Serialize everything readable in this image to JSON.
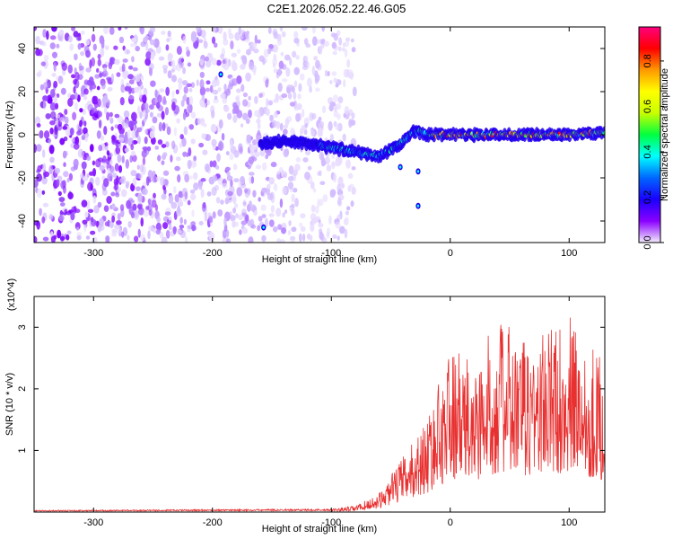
{
  "figure": {
    "title": "C2E1.2026.052.22.46.G05"
  },
  "chart_data": [
    {
      "type": "heatmap",
      "title": "",
      "xlabel": "Height of straight line (km)",
      "ylabel": "Frequency (Hz)",
      "xlim": [
        -350,
        130
      ],
      "ylim": [
        -50,
        50
      ],
      "x_ticks": [
        -300,
        -200,
        -100,
        0,
        100
      ],
      "x_tick_labels": [
        "-300",
        "-200",
        "-100",
        "0",
        "100"
      ],
      "y_ticks": [
        -40,
        -20,
        0,
        20,
        40
      ],
      "y_tick_labels": [
        "-40",
        "-20",
        "0",
        "20",
        "40"
      ],
      "colorbar": {
        "label": "Normalized spectral amplitude",
        "range": [
          0,
          0.95
        ],
        "ticks": [
          0.0,
          0.2,
          0.4,
          0.6,
          0.8
        ],
        "tick_labels": [
          "0.0",
          "0.2",
          "0.4",
          "0.6",
          "0.8"
        ],
        "colors": [
          "#f4ecff",
          "#8a00ff",
          "#1a00ff",
          "#0066ff",
          "#00ffff",
          "#00ff40",
          "#c8ff00",
          "#ffff00",
          "#ff9900",
          "#ff0000",
          "#ff0080"
        ]
      },
      "noise_region_x": [
        -350,
        -110
      ],
      "signal_trace": {
        "x": [
          -160,
          -140,
          -120,
          -100,
          -80,
          -60,
          -50,
          -40,
          -30,
          -20,
          0,
          50,
          100,
          130
        ],
        "y": [
          -4,
          -3,
          -4,
          -6,
          -8,
          -10,
          -7,
          -3,
          2,
          0,
          0,
          0,
          0,
          1
        ]
      },
      "grid": false,
      "legend": "none"
    },
    {
      "type": "line",
      "title": "",
      "xlabel": "Height of straight line (km)",
      "ylabel": "SNR (10 * v/v)",
      "y_multiplier": "(x10^4)",
      "xlim": [
        -350,
        130
      ],
      "ylim": [
        0,
        3.5
      ],
      "x_ticks": [
        -300,
        -200,
        -100,
        0,
        100
      ],
      "x_tick_labels": [
        "-300",
        "-200",
        "-100",
        "0",
        "100"
      ],
      "y_ticks": [
        1,
        2,
        3
      ],
      "y_tick_labels": [
        "1",
        "2",
        "3"
      ],
      "series_color": "#e83030",
      "envelope": {
        "x": [
          -350,
          -100,
          -80,
          -60,
          -40,
          -20,
          0,
          20,
          40,
          60,
          80,
          100,
          130
        ],
        "y": [
          0.03,
          0.05,
          0.1,
          0.3,
          0.9,
          1.5,
          2.7,
          2.4,
          3.2,
          2.8,
          3.0,
          3.2,
          2.5
        ]
      },
      "grid": false,
      "legend": "none"
    }
  ]
}
